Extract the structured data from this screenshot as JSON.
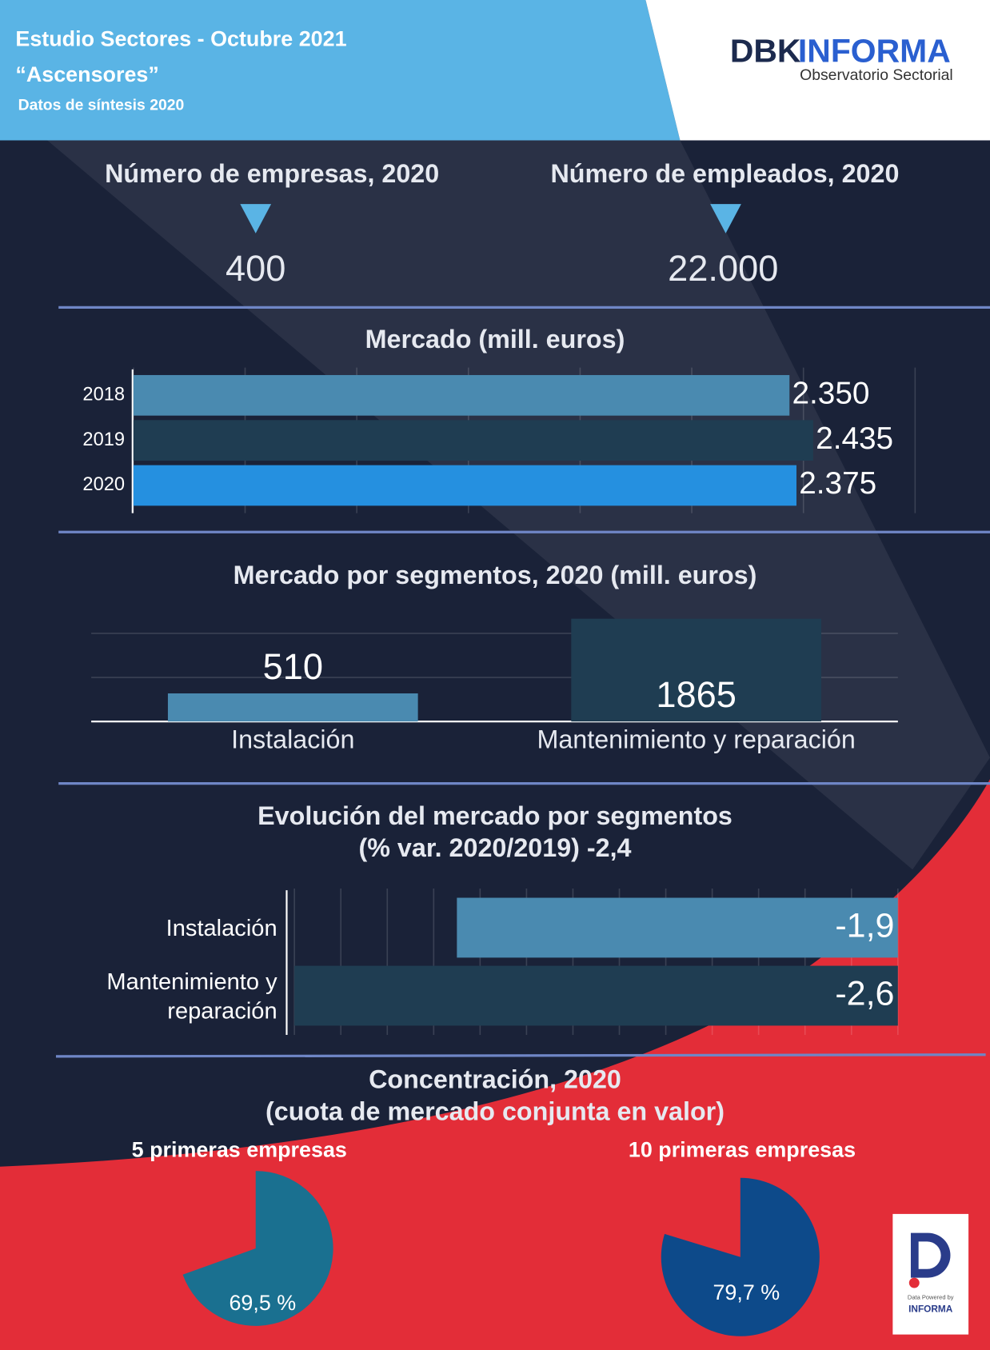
{
  "header": {
    "title": "Estudio Sectores - Octubre 2021",
    "subtitle": "“Ascensores”",
    "note": "Datos de síntesis 2020"
  },
  "logo": {
    "name_a": "DBK",
    "name_b": "INFORMA",
    "tagline": "Observatorio Sectorial"
  },
  "kpis": [
    {
      "label": "Número de empresas, 2020",
      "value": "400"
    },
    {
      "label": "Número de empleados, 2020",
      "value": "22.000"
    }
  ],
  "concentration": {
    "title": "Concentración, 2020",
    "subtitle": "(cuota de mercado conjunta en valor)"
  },
  "badge": {
    "line1": "Data Powered by",
    "line2": "INFORMA"
  },
  "chart_data": [
    {
      "type": "hbar",
      "title": "Mercado (mill. euros)",
      "categories": [
        "2018",
        "2019",
        "2020"
      ],
      "values": [
        2350,
        2435,
        2375
      ],
      "value_labels": [
        "2.350",
        "2.435",
        "2.375"
      ],
      "colors": [
        "#4a8ab0",
        "#1f3d52",
        "#2590e0"
      ],
      "xlim": [
        0,
        2800
      ],
      "xticks": [
        0,
        400,
        800,
        1200,
        1600,
        2000,
        2400,
        2800
      ],
      "grid": true
    },
    {
      "type": "vbar",
      "title": "Mercado por segmentos, 2020 (mill. euros)",
      "categories": [
        "Instalación",
        "Mantenimiento y reparación"
      ],
      "values": [
        510,
        1865
      ],
      "colors": [
        "#4a8ab0",
        "#1f3d52"
      ],
      "ylim": [
        0,
        2000
      ],
      "yticks": [
        0,
        800,
        1600
      ],
      "grid": true
    },
    {
      "type": "hbar",
      "title": "Evolución del mercado por segmentos",
      "subtitle": "(% var. 2020/2019) -2,4",
      "categories": [
        "Instalación",
        "Mantenimiento y reparación"
      ],
      "values": [
        -1.9,
        -2.6
      ],
      "value_labels": [
        "-1,9",
        "-2,6"
      ],
      "colors": [
        "#4a8ab0",
        "#1f3d52"
      ],
      "xlim": [
        -2.6,
        0
      ],
      "xticks": [
        -2.6,
        -2.4,
        -2.2,
        -2,
        -1.8,
        -1.6,
        -1.4,
        -1.2,
        -1,
        -0.8,
        -0.6,
        -0.4,
        -0.2,
        0
      ],
      "grid": true
    },
    {
      "type": "pie",
      "title": "5 primeras empresas",
      "values": [
        69.5
      ],
      "value_labels": [
        "69,5 %"
      ],
      "color": "#1a7090"
    },
    {
      "type": "pie",
      "title": "10 primeras empresas",
      "values": [
        79.7
      ],
      "value_labels": [
        "79,7 %"
      ],
      "color": "#0d4a8a"
    }
  ]
}
